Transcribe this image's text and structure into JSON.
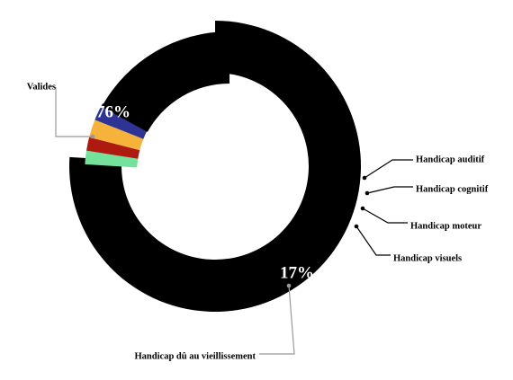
{
  "chart_data": {
    "type": "pie",
    "variant": "exploded-donut",
    "unit": "%",
    "slices": [
      {
        "name": "Valides",
        "value": 76,
        "label": "76%",
        "color": "#000000",
        "leader_color": "#999999"
      },
      {
        "name": "Handicap auditif",
        "value": 1.5,
        "label": "",
        "color": "#74e29a",
        "leader_color": "#000000"
      },
      {
        "name": "Handicap cognitif",
        "value": 1.5,
        "label": "",
        "color": "#ae1a10",
        "leader_color": "#000000"
      },
      {
        "name": "Handicap moteur",
        "value": 2,
        "label": "",
        "color": "#f7b23c",
        "leader_color": "#000000"
      },
      {
        "name": "Handicap visuels",
        "value": 2,
        "label": "",
        "color": "#2f3494",
        "leader_color": "#000000"
      },
      {
        "name": "Handicap dû au vieillissement",
        "value": 17,
        "label": "17%",
        "color": "#000000",
        "leader_color": "#999999"
      }
    ],
    "legend": "none",
    "labels_position": "outside-with-leader-lines"
  }
}
